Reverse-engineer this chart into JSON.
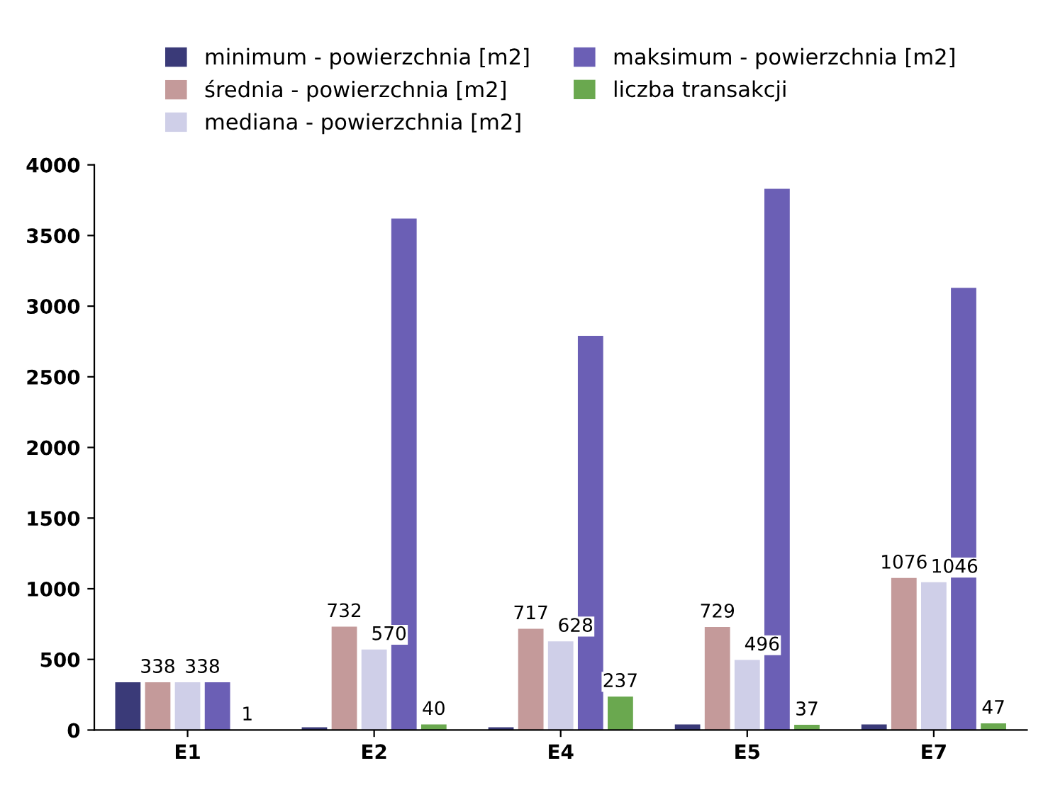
{
  "chart_data": {
    "type": "bar",
    "categories": [
      "E1",
      "E2",
      "E4",
      "E5",
      "E7"
    ],
    "series": [
      {
        "name": "minimum - powierzchnia [m2]",
        "color": "#3a3a78",
        "values": [
          338,
          20,
          20,
          40,
          40
        ]
      },
      {
        "name": "średnia - powierzchnia [m2]",
        "color": "#c49a9a",
        "values": [
          338,
          732,
          717,
          729,
          1076
        ],
        "value_labels": [
          "338",
          "732",
          "717",
          "729",
          "1076"
        ]
      },
      {
        "name": "mediana - powierzchnia [m2]",
        "color": "#cfcfe8",
        "values": [
          338,
          570,
          628,
          496,
          1046
        ],
        "value_labels": [
          "338",
          "570",
          "628",
          "496",
          "1046"
        ]
      },
      {
        "name": "maksimum - powierzchnia [m2]",
        "color": "#6b5fb5",
        "values": [
          338,
          3620,
          2790,
          3830,
          3130
        ]
      },
      {
        "name": "liczba transakcji",
        "color": "#6aa84f",
        "values": [
          1,
          40,
          237,
          37,
          47
        ],
        "value_labels": [
          "1",
          "40",
          "237",
          "37",
          "47"
        ]
      }
    ],
    "ylim": [
      0,
      4000
    ],
    "yticks": [
      0,
      500,
      1000,
      1500,
      2000,
      2500,
      3000,
      3500,
      4000
    ],
    "legend": "top",
    "grid": false
  }
}
